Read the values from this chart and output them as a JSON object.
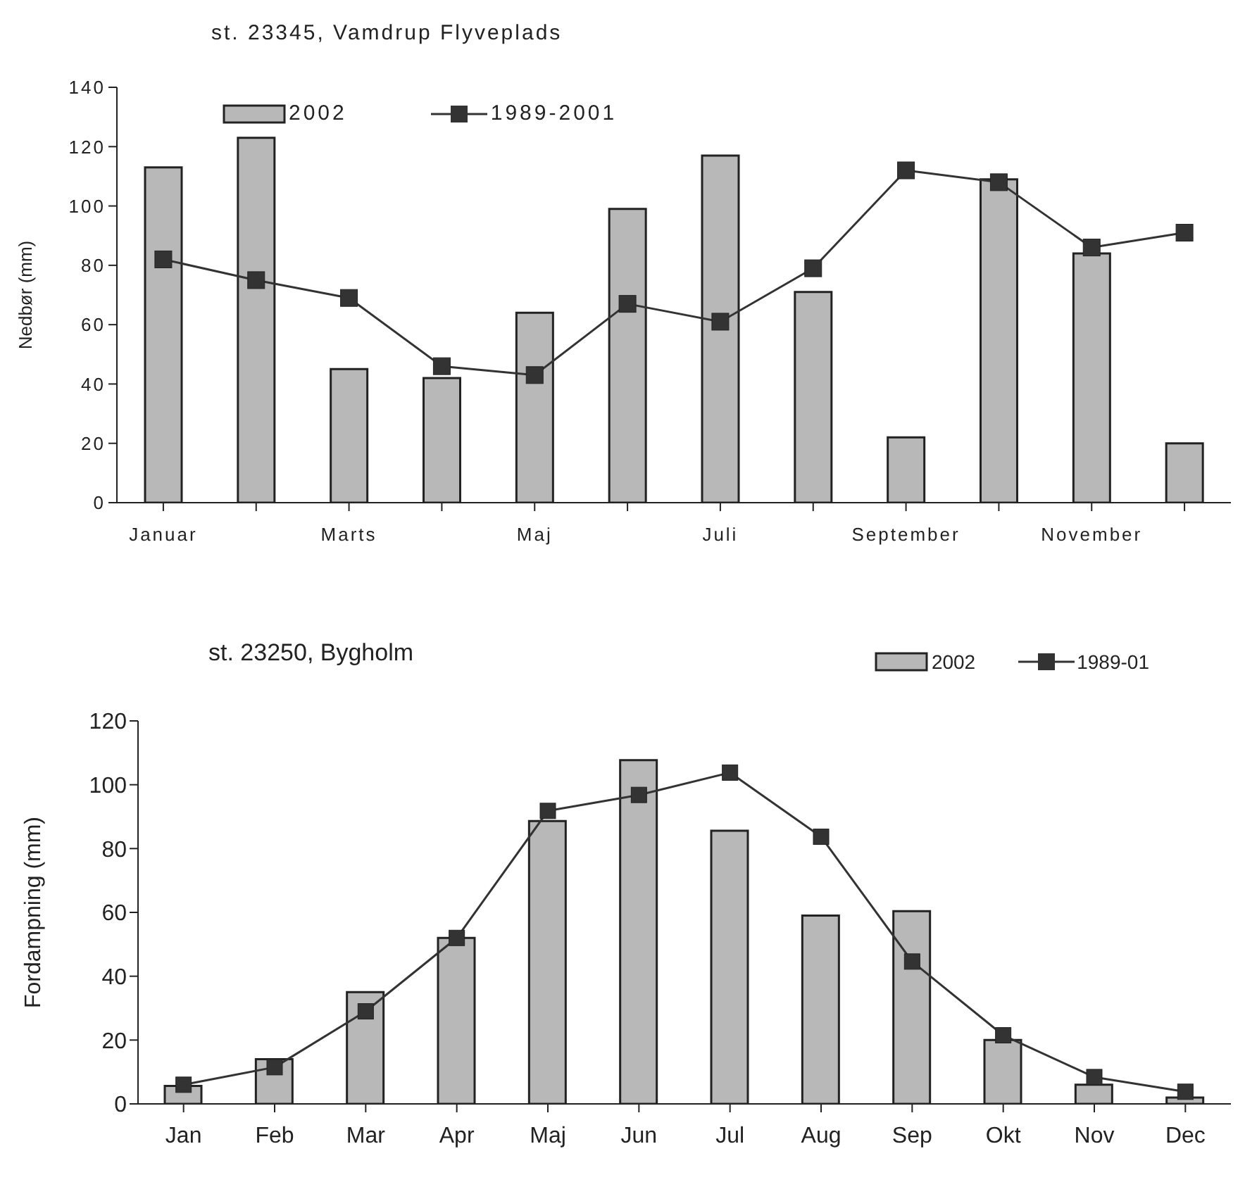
{
  "chart_data": [
    {
      "type": "bar",
      "title": "st. 23345, Vamdrup Flyveplads",
      "ylabel": "Nedbør (mm)",
      "categories": [
        "Januar",
        null,
        "Marts",
        null,
        "Maj",
        null,
        "Juli",
        null,
        "September",
        null,
        "November",
        null
      ],
      "series": [
        {
          "name": "2002",
          "color": "#b8b8b8",
          "values": [
            113,
            123,
            45,
            42,
            64,
            99,
            117,
            71,
            22,
            109,
            84,
            20
          ]
        },
        {
          "name": "1989-2001",
          "type": "line",
          "color": "#333333",
          "values": [
            82,
            75,
            69,
            46,
            43,
            67,
            61,
            79,
            112,
            108,
            86,
            91
          ]
        }
      ],
      "ylim": [
        0,
        140
      ],
      "yticks": [
        0,
        20,
        40,
        60,
        80,
        100,
        120,
        140
      ],
      "grid": false,
      "legend": "top left",
      "marker": "square",
      "line_style": "solid"
    },
    {
      "type": "bar",
      "title": "st. 23250, Bygholm",
      "ylabel": "Fordampning (mm)",
      "categories": [
        "Jan",
        "Feb",
        "Mar",
        "Apr",
        "Maj",
        "Jun",
        "Jul",
        "Aug",
        "Sep",
        "Okt",
        "Nov",
        "Dec"
      ],
      "series": [
        {
          "name": "2002",
          "color": "#b8b8b8",
          "values": [
            5.6,
            14,
            35,
            52,
            88.6,
            107.7,
            85.6,
            59,
            60.4,
            20,
            6,
            2
          ]
        },
        {
          "name": "1989-01",
          "type": "line",
          "color": "#333333",
          "values": [
            6,
            11.5,
            29,
            52,
            91.8,
            96.8,
            103.8,
            83.7,
            44.6,
            21.5,
            8.4,
            3.8
          ]
        }
      ],
      "ylim": [
        0,
        120
      ],
      "yticks": [
        0,
        20,
        40,
        60,
        80,
        100,
        120
      ],
      "grid": false,
      "legend": "top right",
      "marker": "square",
      "line_style": "solid"
    }
  ]
}
